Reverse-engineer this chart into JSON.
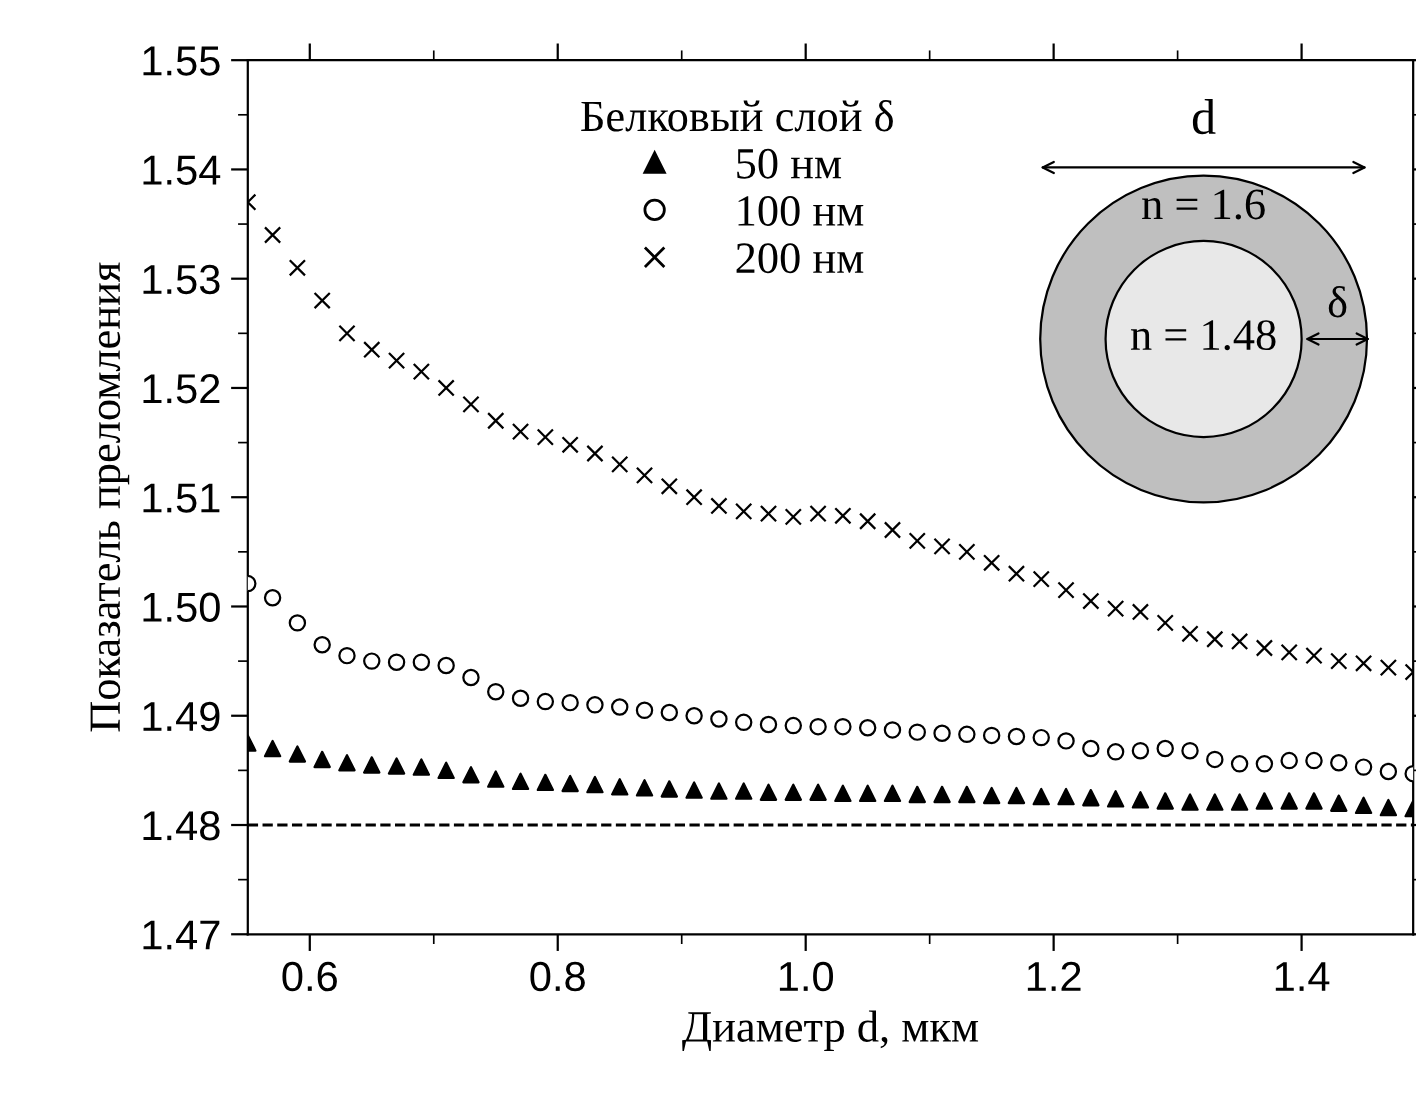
{
  "chart_data": {
    "type": "scatter",
    "xlabel": "Диаметр d, мкм",
    "ylabel": "Показатель преломления",
    "legend_title": "Белковый слой δ",
    "legend": "top",
    "xlim": [
      0.55,
      1.49
    ],
    "xticks": [
      0.6,
      0.8,
      {
        "value": 1.0,
        "label": "1.0"
      },
      1.2,
      1.4
    ],
    "ylim": [
      1.47,
      1.55
    ],
    "yticks": [
      1.47,
      1.48,
      1.49,
      {
        "value": 1.5,
        "label": "1.50"
      },
      1.51,
      1.52,
      1.53,
      1.54,
      1.55
    ],
    "ref_lines": [
      {
        "axis": "y",
        "value": 1.48,
        "line_style": "dashed",
        "color": "#000000"
      }
    ],
    "annotations": [
      "d",
      "n = 1.6",
      "n = 1.48",
      "δ"
    ],
    "x": [
      0.55,
      0.57,
      0.59,
      0.61,
      0.63,
      0.65,
      0.67,
      0.69,
      0.71,
      0.73,
      0.75,
      0.77,
      0.79,
      0.81,
      0.83,
      0.85,
      0.87,
      0.89,
      0.91,
      0.93,
      0.95,
      0.97,
      0.99,
      1.01,
      1.03,
      1.05,
      1.07,
      1.09,
      1.11,
      1.13,
      1.15,
      1.17,
      1.19,
      1.21,
      1.23,
      1.25,
      1.27,
      1.29,
      1.31,
      1.33,
      1.35,
      1.37,
      1.39,
      1.41,
      1.43,
      1.45,
      1.47,
      1.49
    ],
    "series": [
      {
        "name": "50 нм",
        "color": "#000000",
        "marker": "triangle",
        "values": [
          1.4875,
          1.487,
          1.4865,
          1.486,
          1.4857,
          1.4855,
          1.4854,
          1.4853,
          1.485,
          1.4846,
          1.4842,
          1.484,
          1.4839,
          1.4838,
          1.4837,
          1.4835,
          1.4834,
          1.4833,
          1.4832,
          1.4831,
          1.4831,
          1.483,
          1.483,
          1.483,
          1.4829,
          1.4829,
          1.4829,
          1.4828,
          1.4828,
          1.4828,
          1.4827,
          1.4827,
          1.4826,
          1.4826,
          1.4825,
          1.4824,
          1.4823,
          1.4822,
          1.4821,
          1.4821,
          1.4821,
          1.4822,
          1.4822,
          1.4822,
          1.482,
          1.4818,
          1.4816,
          1.4815
        ]
      },
      {
        "name": "100 нм",
        "color": "#000000",
        "marker": "circle",
        "values": [
          1.5021,
          1.5008,
          1.4985,
          1.4965,
          1.4955,
          1.495,
          1.4949,
          1.4949,
          1.4946,
          1.4935,
          1.4922,
          1.4916,
          1.4913,
          1.4912,
          1.491,
          1.4908,
          1.4905,
          1.4903,
          1.49,
          1.4897,
          1.4894,
          1.4892,
          1.4891,
          1.489,
          1.489,
          1.4889,
          1.4887,
          1.4885,
          1.4884,
          1.4883,
          1.4882,
          1.4881,
          1.488,
          1.4877,
          1.487,
          1.4867,
          1.4868,
          1.487,
          1.4868,
          1.486,
          1.4856,
          1.4856,
          1.4859,
          1.4859,
          1.4857,
          1.4853,
          1.4849,
          1.4847
        ]
      },
      {
        "name": "200 нм",
        "color": "#000000",
        "marker": "cross",
        "values": [
          1.537,
          1.534,
          1.531,
          1.528,
          1.525,
          1.5235,
          1.5225,
          1.5215,
          1.52,
          1.5185,
          1.517,
          1.516,
          1.5155,
          1.5148,
          1.514,
          1.513,
          1.512,
          1.511,
          1.51,
          1.5092,
          1.5087,
          1.5085,
          1.5082,
          1.5085,
          1.5083,
          1.5078,
          1.507,
          1.506,
          1.5055,
          1.505,
          1.504,
          1.503,
          1.5025,
          1.5015,
          1.5005,
          1.4998,
          1.4995,
          1.4985,
          1.4975,
          1.497,
          1.4968,
          1.4962,
          1.4958,
          1.4955,
          1.495,
          1.4948,
          1.4944,
          1.494
        ]
      }
    ]
  }
}
